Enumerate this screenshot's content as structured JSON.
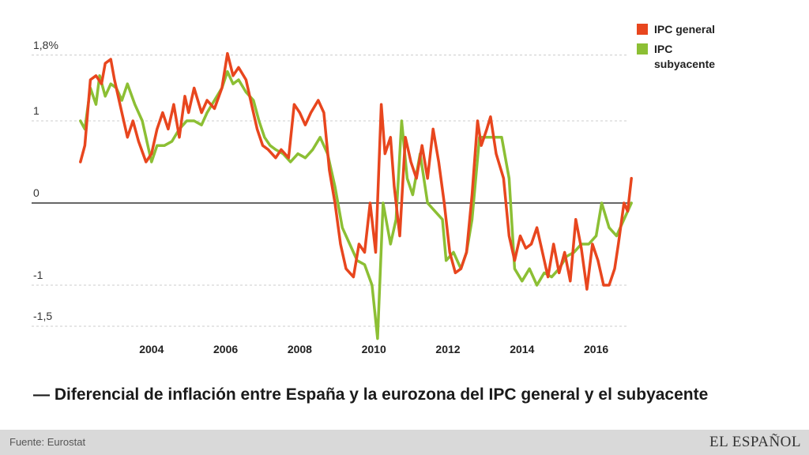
{
  "subtitle": "— Diferencial de inflación entre España y la eurozona del IPC general y el subyacente",
  "footer": {
    "source": "Fuente: Eurostat",
    "logo": "EL ESPAÑOL"
  },
  "legend": [
    {
      "label": "IPC general",
      "color": "#e8461e"
    },
    {
      "label": "IPC subyacente",
      "color": "#8cbf34"
    }
  ],
  "chart_data": {
    "type": "line",
    "title": "",
    "xlabel": "",
    "ylabel": "",
    "xlim": [
      2002.0,
      2017.0
    ],
    "ylim": [
      -1.65,
      1.9
    ],
    "y_ticks": [
      {
        "value": 1.8,
        "label": "1,8%"
      },
      {
        "value": 1,
        "label": "1"
      },
      {
        "value": 0,
        "label": "0"
      },
      {
        "value": -1,
        "label": "-1"
      },
      {
        "value": -1.5,
        "label": "-1,5"
      }
    ],
    "x_ticks": [
      {
        "value": 2004,
        "label": "2004"
      },
      {
        "value": 2006,
        "label": "2006"
      },
      {
        "value": 2008,
        "label": "2008"
      },
      {
        "value": 2010,
        "label": "2010"
      },
      {
        "value": 2012,
        "label": "2012"
      },
      {
        "value": 2014,
        "label": "2014"
      },
      {
        "value": 2016,
        "label": "2016"
      }
    ],
    "grid": "horizontal dashed",
    "legend_position": "top-right",
    "series": [
      {
        "name": "IPC general",
        "color": "#e8461e",
        "points": [
          [
            2002.08,
            0.5
          ],
          [
            2002.2,
            0.7
          ],
          [
            2002.35,
            1.5
          ],
          [
            2002.5,
            1.55
          ],
          [
            2002.65,
            1.45
          ],
          [
            2002.75,
            1.7
          ],
          [
            2002.9,
            1.75
          ],
          [
            2003.0,
            1.5
          ],
          [
            2003.15,
            1.2
          ],
          [
            2003.35,
            0.8
          ],
          [
            2003.5,
            1.0
          ],
          [
            2003.65,
            0.75
          ],
          [
            2003.85,
            0.5
          ],
          [
            2004.0,
            0.6
          ],
          [
            2004.15,
            0.9
          ],
          [
            2004.3,
            1.1
          ],
          [
            2004.45,
            0.9
          ],
          [
            2004.6,
            1.2
          ],
          [
            2004.75,
            0.8
          ],
          [
            2004.9,
            1.3
          ],
          [
            2005.0,
            1.1
          ],
          [
            2005.15,
            1.4
          ],
          [
            2005.35,
            1.1
          ],
          [
            2005.5,
            1.25
          ],
          [
            2005.7,
            1.15
          ],
          [
            2005.9,
            1.4
          ],
          [
            2006.05,
            1.82
          ],
          [
            2006.2,
            1.55
          ],
          [
            2006.35,
            1.65
          ],
          [
            2006.55,
            1.5
          ],
          [
            2006.7,
            1.2
          ],
          [
            2006.85,
            0.9
          ],
          [
            2007.0,
            0.7
          ],
          [
            2007.15,
            0.65
          ],
          [
            2007.35,
            0.55
          ],
          [
            2007.5,
            0.65
          ],
          [
            2007.7,
            0.55
          ],
          [
            2007.85,
            1.2
          ],
          [
            2008.0,
            1.1
          ],
          [
            2008.15,
            0.95
          ],
          [
            2008.3,
            1.1
          ],
          [
            2008.5,
            1.25
          ],
          [
            2008.65,
            1.1
          ],
          [
            2008.8,
            0.4
          ],
          [
            2008.95,
            0.0
          ],
          [
            2009.1,
            -0.5
          ],
          [
            2009.25,
            -0.8
          ],
          [
            2009.45,
            -0.9
          ],
          [
            2009.6,
            -0.5
          ],
          [
            2009.75,
            -0.6
          ],
          [
            2009.9,
            0.0
          ],
          [
            2010.05,
            -0.6
          ],
          [
            2010.2,
            1.2
          ],
          [
            2010.3,
            0.6
          ],
          [
            2010.45,
            0.8
          ],
          [
            2010.55,
            0.2
          ],
          [
            2010.7,
            -0.4
          ],
          [
            2010.85,
            0.8
          ],
          [
            2011.0,
            0.5
          ],
          [
            2011.15,
            0.3
          ],
          [
            2011.3,
            0.7
          ],
          [
            2011.45,
            0.3
          ],
          [
            2011.6,
            0.9
          ],
          [
            2011.75,
            0.5
          ],
          [
            2011.9,
            0.0
          ],
          [
            2012.05,
            -0.6
          ],
          [
            2012.2,
            -0.85
          ],
          [
            2012.35,
            -0.8
          ],
          [
            2012.5,
            -0.6
          ],
          [
            2012.65,
            0.1
          ],
          [
            2012.8,
            1.0
          ],
          [
            2012.9,
            0.7
          ],
          [
            2013.05,
            0.9
          ],
          [
            2013.15,
            1.05
          ],
          [
            2013.3,
            0.6
          ],
          [
            2013.5,
            0.3
          ],
          [
            2013.65,
            -0.4
          ],
          [
            2013.8,
            -0.7
          ],
          [
            2013.95,
            -0.4
          ],
          [
            2014.1,
            -0.55
          ],
          [
            2014.25,
            -0.5
          ],
          [
            2014.4,
            -0.3
          ],
          [
            2014.55,
            -0.6
          ],
          [
            2014.7,
            -0.9
          ],
          [
            2014.85,
            -0.5
          ],
          [
            2015.0,
            -0.85
          ],
          [
            2015.15,
            -0.6
          ],
          [
            2015.3,
            -0.95
          ],
          [
            2015.45,
            -0.2
          ],
          [
            2015.6,
            -0.55
          ],
          [
            2015.75,
            -1.05
          ],
          [
            2015.9,
            -0.5
          ],
          [
            2016.05,
            -0.7
          ],
          [
            2016.2,
            -1.0
          ],
          [
            2016.35,
            -1.0
          ],
          [
            2016.5,
            -0.8
          ],
          [
            2016.6,
            -0.5
          ],
          [
            2016.75,
            0.0
          ],
          [
            2016.85,
            -0.1
          ],
          [
            2016.95,
            0.3
          ]
        ]
      },
      {
        "name": "IPC subyacente",
        "color": "#8cbf34",
        "points": [
          [
            2002.08,
            1.0
          ],
          [
            2002.2,
            0.9
          ],
          [
            2002.35,
            1.4
          ],
          [
            2002.5,
            1.2
          ],
          [
            2002.6,
            1.55
          ],
          [
            2002.75,
            1.3
          ],
          [
            2002.9,
            1.45
          ],
          [
            2003.05,
            1.4
          ],
          [
            2003.2,
            1.25
          ],
          [
            2003.35,
            1.45
          ],
          [
            2003.55,
            1.2
          ],
          [
            2003.75,
            1.0
          ],
          [
            2003.9,
            0.7
          ],
          [
            2004.0,
            0.5
          ],
          [
            2004.15,
            0.7
          ],
          [
            2004.35,
            0.7
          ],
          [
            2004.55,
            0.75
          ],
          [
            2004.75,
            0.9
          ],
          [
            2004.95,
            1.0
          ],
          [
            2005.15,
            1.0
          ],
          [
            2005.35,
            0.95
          ],
          [
            2005.5,
            1.1
          ],
          [
            2005.7,
            1.25
          ],
          [
            2005.9,
            1.4
          ],
          [
            2006.05,
            1.6
          ],
          [
            2006.2,
            1.45
          ],
          [
            2006.35,
            1.5
          ],
          [
            2006.55,
            1.35
          ],
          [
            2006.75,
            1.25
          ],
          [
            2006.9,
            1.0
          ],
          [
            2007.05,
            0.8
          ],
          [
            2007.2,
            0.7
          ],
          [
            2007.35,
            0.65
          ],
          [
            2007.55,
            0.6
          ],
          [
            2007.75,
            0.5
          ],
          [
            2007.95,
            0.6
          ],
          [
            2008.15,
            0.55
          ],
          [
            2008.35,
            0.65
          ],
          [
            2008.55,
            0.8
          ],
          [
            2008.75,
            0.6
          ],
          [
            2008.95,
            0.2
          ],
          [
            2009.15,
            -0.3
          ],
          [
            2009.35,
            -0.5
          ],
          [
            2009.55,
            -0.7
          ],
          [
            2009.75,
            -0.75
          ],
          [
            2009.95,
            -1.0
          ],
          [
            2010.1,
            -1.65
          ],
          [
            2010.25,
            0.0
          ],
          [
            2010.45,
            -0.5
          ],
          [
            2010.6,
            -0.2
          ],
          [
            2010.75,
            1.0
          ],
          [
            2010.9,
            0.3
          ],
          [
            2011.05,
            0.1
          ],
          [
            2011.25,
            0.6
          ],
          [
            2011.45,
            0.0
          ],
          [
            2011.65,
            -0.1
          ],
          [
            2011.85,
            -0.2
          ],
          [
            2011.95,
            -0.7
          ],
          [
            2012.15,
            -0.6
          ],
          [
            2012.35,
            -0.8
          ],
          [
            2012.5,
            -0.6
          ],
          [
            2012.65,
            -0.2
          ],
          [
            2012.85,
            0.8
          ],
          [
            2013.05,
            0.8
          ],
          [
            2013.25,
            0.8
          ],
          [
            2013.45,
            0.8
          ],
          [
            2013.65,
            0.3
          ],
          [
            2013.8,
            -0.8
          ],
          [
            2014.0,
            -0.95
          ],
          [
            2014.2,
            -0.8
          ],
          [
            2014.4,
            -1.0
          ],
          [
            2014.6,
            -0.85
          ],
          [
            2014.8,
            -0.9
          ],
          [
            2015.0,
            -0.8
          ],
          [
            2015.2,
            -0.65
          ],
          [
            2015.4,
            -0.6
          ],
          [
            2015.6,
            -0.5
          ],
          [
            2015.8,
            -0.5
          ],
          [
            2016.0,
            -0.4
          ],
          [
            2016.15,
            0.0
          ],
          [
            2016.35,
            -0.3
          ],
          [
            2016.55,
            -0.4
          ],
          [
            2016.75,
            -0.2
          ],
          [
            2016.95,
            0.0
          ]
        ]
      }
    ]
  }
}
